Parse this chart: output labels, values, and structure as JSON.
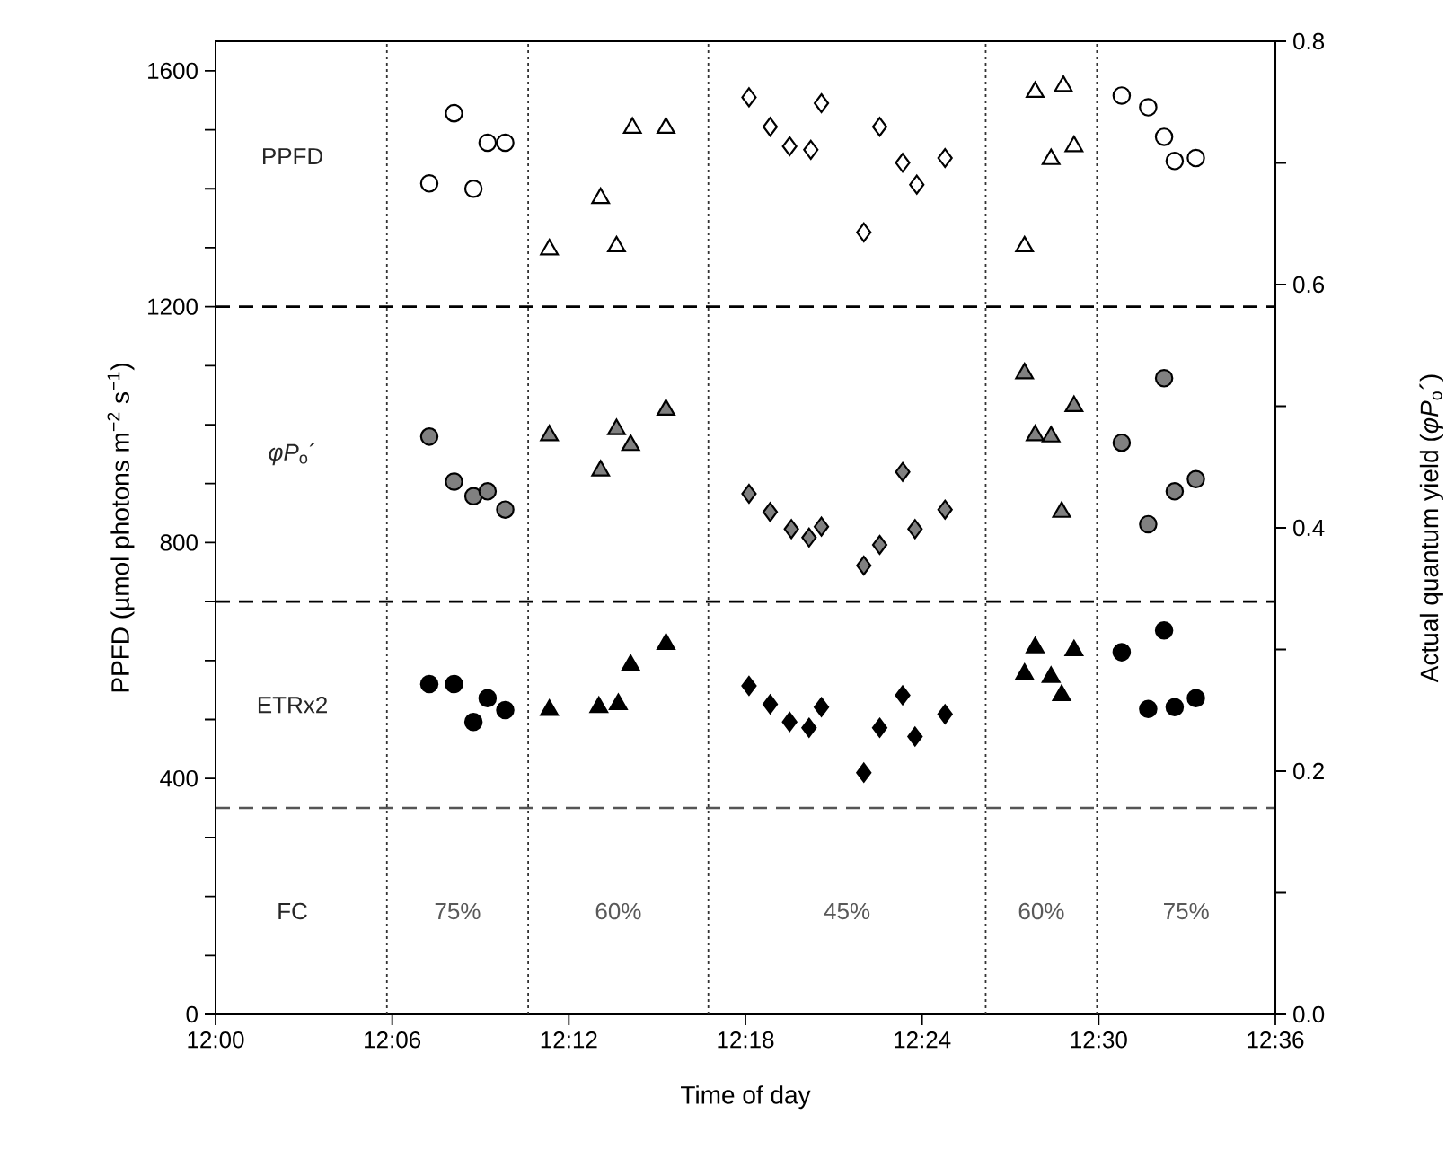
{
  "chart_data": {
    "type": "scatter",
    "xlabel": "Time of day",
    "ylabel": "PPFD (µmol photons m$^{−2}$ s$^{−1}$)",
    "y2label": "Actual quantum yield (*φP*$_{o}$´)",
    "xlim": [
      12.0,
      12.6
    ],
    "xticks": [
      {
        "value": 12.0,
        "label": "12:00"
      },
      {
        "value": 12.1,
        "label": "12:06"
      },
      {
        "value": 12.2,
        "label": "12:12"
      },
      {
        "value": 12.3,
        "label": "12:18"
      },
      {
        "value": 12.4,
        "label": "12:24"
      },
      {
        "value": 12.5,
        "label": "12:30"
      },
      {
        "value": 12.6,
        "label": "12:36"
      }
    ],
    "ylim": [
      0,
      1650
    ],
    "yticks": [
      0,
      {
        "value": 100,
        "label": null
      },
      {
        "value": 200,
        "label": null
      },
      {
        "value": 300,
        "label": null
      },
      400,
      {
        "value": 500,
        "label": null
      },
      {
        "value": 600,
        "label": null
      },
      {
        "value": 700,
        "label": null
      },
      800,
      {
        "value": 900,
        "label": null
      },
      {
        "value": 1000,
        "label": null
      },
      {
        "value": 1100,
        "label": null
      },
      1200,
      {
        "value": 1300,
        "label": null
      },
      {
        "value": 1400,
        "label": null
      },
      {
        "value": 1500,
        "label": null
      },
      1600
    ],
    "y2lim": [
      0,
      0.8
    ],
    "y2ticks": [
      {
        "value": 0,
        "label": "0.0"
      },
      {
        "value": 0.1,
        "label": null
      },
      0.2,
      {
        "value": 0.3,
        "label": null
      },
      0.4,
      {
        "value": 0.5,
        "label": null
      },
      0.6,
      {
        "value": 0.7,
        "label": null
      },
      0.8
    ],
    "series": [
      {
        "color": "#ffffff",
        "marker": "circle",
        "x": [
          12.121,
          12.135,
          12.146,
          12.154,
          12.164,
          12.513,
          12.528,
          12.537,
          12.543,
          12.555
        ],
        "values": [
          1409,
          1528,
          1400,
          1478,
          1478,
          1558,
          1538,
          1488,
          1447,
          1452
        ]
      },
      {
        "color": "#ffffff",
        "marker": "triangle",
        "x": [
          12.189,
          12.218,
          12.227,
          12.236,
          12.255,
          12.458,
          12.464,
          12.473,
          12.48,
          12.486
        ],
        "values": [
          1297,
          1384,
          1302,
          1503,
          1503,
          1302,
          1564,
          1450,
          1574,
          1472
        ]
      },
      {
        "color": "#ffffff",
        "marker": "diamond",
        "x": [
          12.302,
          12.314,
          12.325,
          12.337,
          12.343,
          12.367,
          12.376,
          12.389,
          12.397,
          12.413
        ],
        "values": [
          1555,
          1505,
          1472,
          1466,
          1545,
          1326,
          1505,
          1444,
          1407,
          1452
        ]
      },
      {
        "color": "#808080",
        "marker": "circle",
        "axis": "y2",
        "x": [
          12.121,
          12.135,
          12.146,
          12.154,
          12.164,
          12.513,
          12.528,
          12.537,
          12.543,
          12.555
        ],
        "values": [
          0.475,
          0.438,
          0.426,
          0.43,
          0.415,
          0.47,
          0.403,
          0.523,
          0.43,
          0.44
        ]
      },
      {
        "color": "#808080",
        "marker": "triangle",
        "axis": "y2",
        "x": [
          12.189,
          12.218,
          12.227,
          12.235,
          12.255,
          12.458,
          12.464,
          12.473,
          12.479,
          12.486
        ],
        "values": [
          0.476,
          0.447,
          0.481,
          0.468,
          0.497,
          0.527,
          0.476,
          0.475,
          0.413,
          0.5
        ]
      },
      {
        "color": "#808080",
        "marker": "diamond",
        "axis": "y2",
        "x": [
          12.302,
          12.314,
          12.326,
          12.336,
          12.343,
          12.367,
          12.376,
          12.389,
          12.396,
          12.413
        ],
        "values": [
          0.428,
          0.413,
          0.399,
          0.392,
          0.401,
          0.369,
          0.386,
          0.446,
          0.399,
          0.415
        ]
      },
      {
        "color": "#000000",
        "marker": "circle",
        "x": [
          12.121,
          12.135,
          12.146,
          12.154,
          12.164,
          12.513,
          12.528,
          12.537,
          12.543,
          12.555
        ],
        "values": [
          560,
          560,
          496,
          536,
          516,
          614,
          518,
          651,
          521,
          536
        ]
      },
      {
        "color": "#000000",
        "marker": "triangle",
        "x": [
          12.189,
          12.217,
          12.228,
          12.235,
          12.255,
          12.458,
          12.464,
          12.473,
          12.479,
          12.486
        ],
        "values": [
          516,
          521,
          526,
          592,
          628,
          577,
          622,
          572,
          541,
          617
        ]
      },
      {
        "color": "#000000",
        "marker": "diamond",
        "x": [
          12.302,
          12.314,
          12.325,
          12.336,
          12.343,
          12.367,
          12.376,
          12.389,
          12.396,
          12.413
        ],
        "values": [
          557,
          526,
          496,
          486,
          521,
          410,
          486,
          541,
          471,
          509
        ]
      }
    ],
    "ref_lines": [
      {
        "axis": "y",
        "value": 1200,
        "line_style": "dashed",
        "color": "#000000"
      },
      {
        "axis": "y",
        "value": 700,
        "line_style": "dashed",
        "color": "#000000"
      },
      {
        "axis": "y",
        "value": 350,
        "line_style": "dashed",
        "color": "#555555"
      },
      {
        "axis": "x",
        "value": 12.097,
        "line_style": "dotted",
        "color": "#333333"
      },
      {
        "axis": "x",
        "value": 12.177,
        "line_style": "dotted",
        "color": "#333333"
      },
      {
        "axis": "x",
        "value": 12.279,
        "line_style": "dotted",
        "color": "#333333"
      },
      {
        "axis": "x",
        "value": 12.436,
        "line_style": "dotted",
        "color": "#333333"
      },
      {
        "axis": "x",
        "value": 12.499,
        "line_style": "dotted",
        "color": "#333333"
      }
    ],
    "annotations": [
      "PPFD",
      "*φP*$_{o}$´",
      "ETRx2",
      "FC",
      "75%",
      "60%",
      "45%",
      "60%",
      "75%"
    ]
  }
}
